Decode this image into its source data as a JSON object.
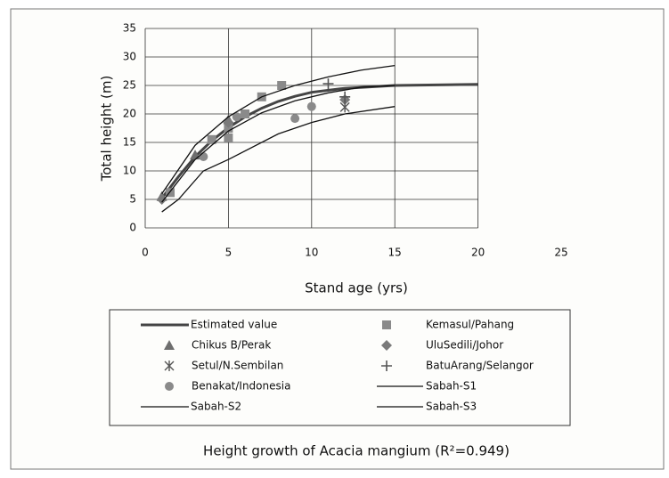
{
  "chart_data": {
    "type": "line",
    "title": "Height growth of Acacia mangium (R²=0.949)",
    "x_label": "Stand age (yrs)",
    "y_label": "Total height (m)",
    "xlim": [
      0,
      25
    ],
    "xticks": [
      0,
      5,
      10,
      15,
      20,
      25
    ],
    "ylim": [
      0,
      35
    ],
    "yticks": [
      0,
      5,
      10,
      15,
      20,
      25,
      30,
      35
    ],
    "grid": true,
    "series": [
      {
        "name": "Estimated value",
        "color": "#444444",
        "marker": "none",
        "line_width": 3,
        "x": [
          1,
          2,
          3,
          4,
          5,
          6,
          7,
          8,
          9,
          10,
          12,
          15,
          20
        ],
        "values": [
          5.2,
          9,
          12.5,
          15.3,
          17.6,
          19.5,
          21,
          22.2,
          23.1,
          23.8,
          24.5,
          25,
          25.2
        ]
      },
      {
        "name": "Kemasul/Pahang",
        "color": "#8a8a8a",
        "marker": "square",
        "x": [
          1.5,
          4,
          5,
          5,
          6,
          7,
          8.2
        ],
        "values": [
          6.2,
          15.5,
          15.8,
          17.5,
          20,
          23,
          25
        ]
      },
      {
        "name": "Chikus B/Perak",
        "color": "#6e6e6e",
        "marker": "triangle",
        "x": [
          1,
          3,
          5
        ],
        "values": [
          5.5,
          12.8,
          19
        ]
      },
      {
        "name": "UluSedili/Johor",
        "color": "#7a7a7a",
        "marker": "diamond",
        "x": [
          1,
          5,
          12
        ],
        "values": [
          5,
          18.5,
          22.5
        ]
      },
      {
        "name": "Setul/N.Sembilan",
        "color": "#555555",
        "marker": "asterisk",
        "x": [
          12
        ],
        "values": [
          21.2
        ]
      },
      {
        "name": "BatuArang/Selangor",
        "color": "#555555",
        "marker": "plus",
        "x": [
          11,
          12
        ],
        "values": [
          25.3,
          23
        ]
      },
      {
        "name": "Benakat/Indonesia",
        "color": "#8a8a8a",
        "marker": "circle",
        "x": [
          3.5,
          5.5,
          9,
          10
        ],
        "values": [
          12.5,
          19.5,
          19.2,
          21.3
        ]
      },
      {
        "name": "Sabah-S1",
        "color": "#111111",
        "marker": "none",
        "line_width": 1.3,
        "x": [
          1,
          3,
          5,
          7,
          9,
          11,
          13,
          15
        ],
        "values": [
          6,
          14.5,
          19.5,
          23,
          25,
          26.5,
          27.7,
          28.5
        ]
      },
      {
        "name": "Sabah-S2",
        "color": "#111111",
        "marker": "none",
        "line_width": 1.3,
        "x": [
          1,
          3,
          5,
          7,
          9,
          11,
          13,
          15
        ],
        "values": [
          4.5,
          12,
          17,
          20.2,
          22.3,
          23.7,
          24.7,
          25
        ]
      },
      {
        "name": "Sabah-S3",
        "color": "#111111",
        "marker": "none",
        "line_width": 1.3,
        "x": [
          1,
          2,
          3.5,
          5,
          8,
          10,
          12,
          15
        ],
        "values": [
          2.8,
          5,
          10,
          12,
          16.5,
          18.5,
          20,
          21.3
        ]
      }
    ]
  }
}
